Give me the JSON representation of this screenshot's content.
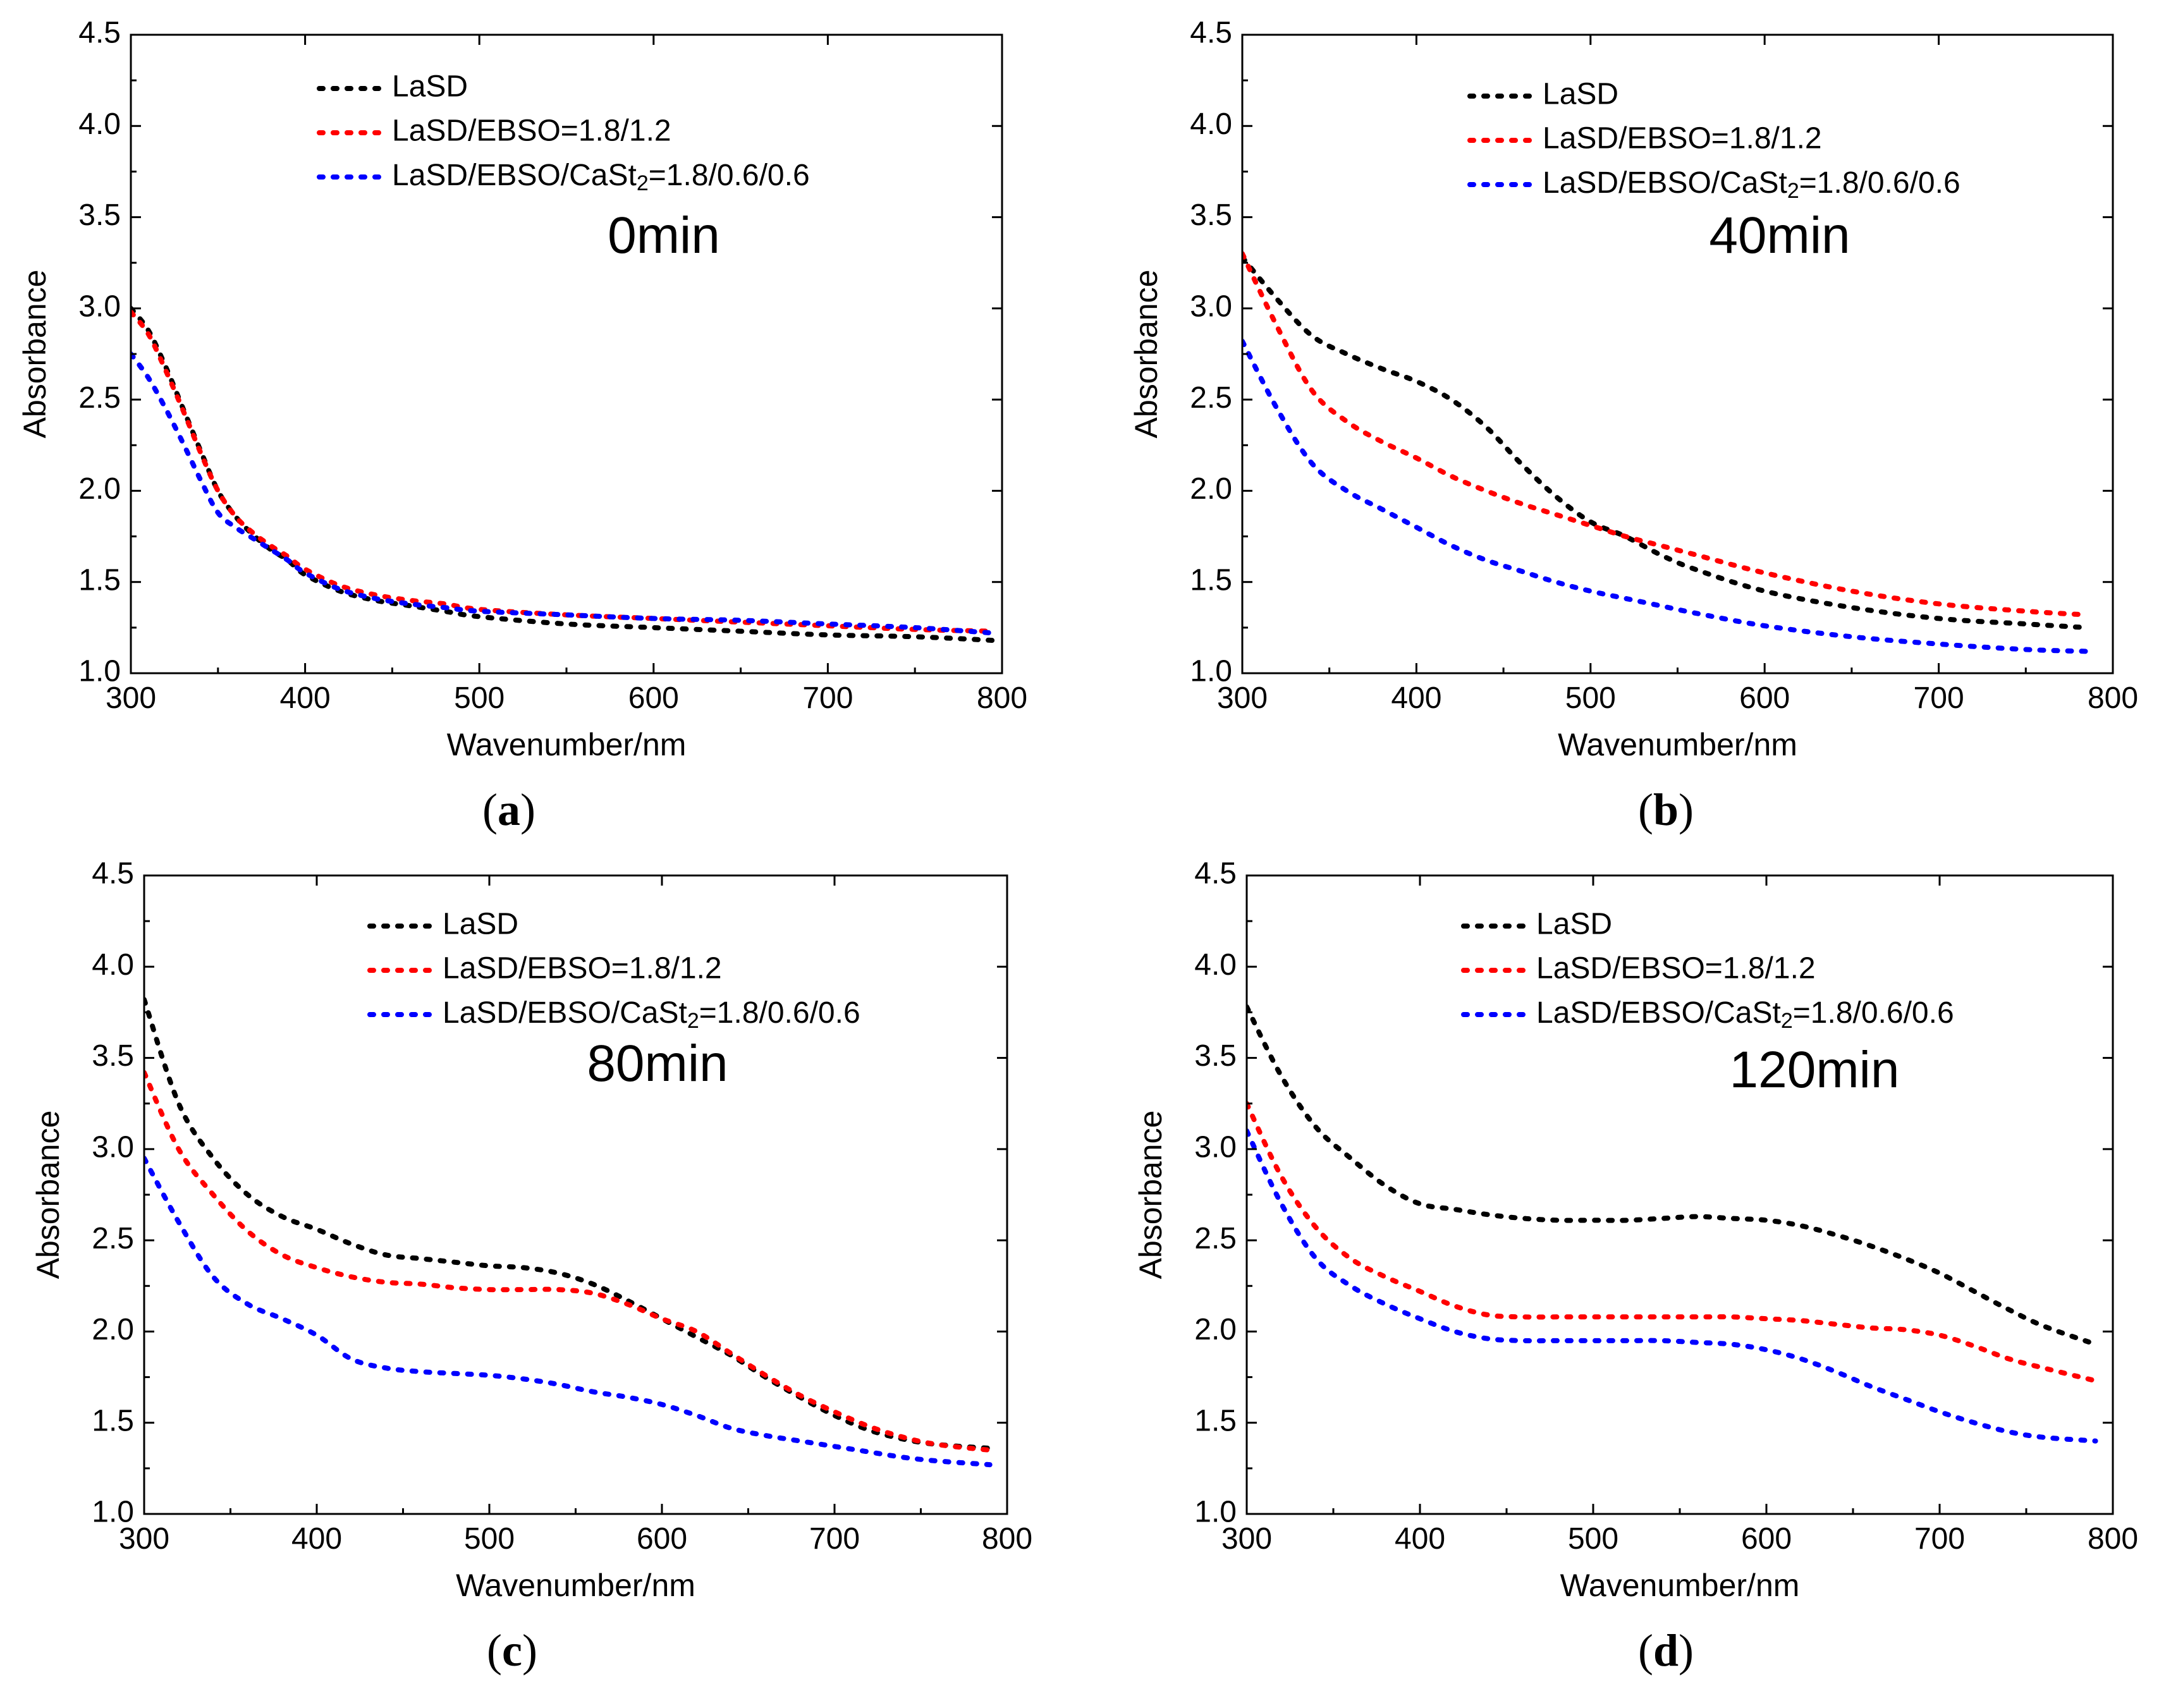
{
  "chart_data": [
    {
      "type": "line",
      "panel": "(a)",
      "annotation": "0min",
      "xlabel": "Wavenumber/nm",
      "ylabel": "Absorbance",
      "xlim": [
        300,
        800
      ],
      "ylim": [
        1.0,
        4.5
      ],
      "xticks": [
        "300",
        "400",
        "500",
        "600",
        "700",
        "800"
      ],
      "yticks": [
        "1.0",
        "1.5",
        "2.0",
        "2.5",
        "3.0",
        "3.5",
        "4.0",
        "4.5"
      ],
      "legend": {
        "placement": "top-center"
      },
      "series": [
        {
          "name": "LaSD",
          "color": "#000000",
          "x": [
            300,
            310,
            320,
            330,
            340,
            350,
            360,
            370,
            380,
            390,
            400,
            420,
            440,
            460,
            480,
            500,
            550,
            600,
            650,
            700,
            750,
            795
          ],
          "y": [
            3.0,
            2.88,
            2.68,
            2.45,
            2.22,
            2.0,
            1.86,
            1.76,
            1.68,
            1.62,
            1.54,
            1.45,
            1.4,
            1.37,
            1.34,
            1.31,
            1.27,
            1.25,
            1.23,
            1.21,
            1.2,
            1.18
          ]
        },
        {
          "name": "LaSD/EBSO=1.8/1.2",
          "color": "#ff0000",
          "x": [
            300,
            310,
            320,
            330,
            340,
            350,
            360,
            370,
            380,
            390,
            400,
            420,
            440,
            460,
            480,
            500,
            550,
            600,
            650,
            700,
            750,
            795
          ],
          "y": [
            2.98,
            2.86,
            2.66,
            2.44,
            2.21,
            2.0,
            1.86,
            1.77,
            1.7,
            1.64,
            1.57,
            1.48,
            1.43,
            1.4,
            1.38,
            1.35,
            1.32,
            1.3,
            1.28,
            1.26,
            1.24,
            1.23
          ]
        },
        {
          "name": "LaSD/EBSO/CaSt2=1.8/0.6/0.6",
          "color": "#0000ff",
          "x": [
            300,
            310,
            320,
            330,
            340,
            350,
            360,
            370,
            380,
            390,
            400,
            420,
            440,
            460,
            480,
            500,
            550,
            600,
            650,
            700,
            750,
            795
          ],
          "y": [
            2.75,
            2.62,
            2.45,
            2.26,
            2.06,
            1.88,
            1.8,
            1.74,
            1.68,
            1.62,
            1.55,
            1.46,
            1.41,
            1.38,
            1.36,
            1.34,
            1.32,
            1.3,
            1.29,
            1.27,
            1.25,
            1.22
          ]
        }
      ]
    },
    {
      "type": "line",
      "panel": "(b)",
      "annotation": "40min",
      "xlabel": "Wavenumber/nm",
      "ylabel": "Absorbance",
      "xlim": [
        300,
        800
      ],
      "ylim": [
        1.0,
        4.5
      ],
      "xticks": [
        "300",
        "400",
        "500",
        "600",
        "700",
        "800"
      ],
      "yticks": [
        "1.0",
        "1.5",
        "2.0",
        "2.5",
        "3.0",
        "3.5",
        "4.0",
        "4.5"
      ],
      "legend": {
        "placement": "top-right"
      },
      "series": [
        {
          "name": "LaSD",
          "color": "#000000",
          "x": [
            300,
            320,
            340,
            360,
            380,
            400,
            420,
            440,
            460,
            480,
            500,
            520,
            540,
            560,
            600,
            650,
            700,
            750,
            785
          ],
          "y": [
            3.28,
            3.05,
            2.85,
            2.75,
            2.67,
            2.6,
            2.5,
            2.35,
            2.15,
            1.97,
            1.83,
            1.75,
            1.65,
            1.57,
            1.45,
            1.36,
            1.3,
            1.27,
            1.25
          ]
        },
        {
          "name": "LaSD/EBSO=1.8/1.2",
          "color": "#ff0000",
          "x": [
            300,
            320,
            340,
            360,
            380,
            400,
            420,
            440,
            460,
            480,
            500,
            520,
            540,
            560,
            600,
            650,
            700,
            750,
            785
          ],
          "y": [
            3.3,
            2.9,
            2.55,
            2.38,
            2.27,
            2.18,
            2.08,
            2.0,
            1.93,
            1.87,
            1.81,
            1.75,
            1.7,
            1.65,
            1.55,
            1.45,
            1.38,
            1.34,
            1.32
          ]
        },
        {
          "name": "LaSD/EBSO/CaSt2=1.8/0.6/0.6",
          "color": "#0000ff",
          "x": [
            300,
            320,
            340,
            360,
            380,
            400,
            420,
            440,
            460,
            480,
            500,
            520,
            540,
            560,
            600,
            650,
            700,
            750,
            785
          ],
          "y": [
            2.82,
            2.45,
            2.15,
            2.0,
            1.9,
            1.8,
            1.7,
            1.62,
            1.56,
            1.5,
            1.45,
            1.41,
            1.37,
            1.33,
            1.26,
            1.2,
            1.16,
            1.13,
            1.12
          ]
        }
      ]
    },
    {
      "type": "line",
      "panel": "(c)",
      "annotation": "80min",
      "xlabel": "Wavenumber/nm",
      "ylabel": "Absorbance",
      "xlim": [
        300,
        800
      ],
      "ylim": [
        1.0,
        4.5
      ],
      "xticks": [
        "300",
        "400",
        "500",
        "600",
        "700",
        "800"
      ],
      "yticks": [
        "1.0",
        "1.5",
        "2.0",
        "2.5",
        "3.0",
        "3.5",
        "4.0",
        "4.5"
      ],
      "legend": {
        "placement": "top-right"
      },
      "series": [
        {
          "name": "LaSD",
          "color": "#000000",
          "x": [
            300,
            320,
            340,
            360,
            380,
            400,
            420,
            440,
            460,
            480,
            500,
            520,
            540,
            560,
            580,
            600,
            620,
            640,
            660,
            680,
            700,
            720,
            740,
            760,
            790
          ],
          "y": [
            3.82,
            3.25,
            2.95,
            2.75,
            2.63,
            2.56,
            2.48,
            2.42,
            2.4,
            2.38,
            2.36,
            2.35,
            2.32,
            2.26,
            2.17,
            2.07,
            1.97,
            1.87,
            1.75,
            1.64,
            1.54,
            1.46,
            1.41,
            1.38,
            1.36
          ]
        },
        {
          "name": "LaSD/EBSO=1.8/1.2",
          "color": "#ff0000",
          "x": [
            300,
            320,
            340,
            360,
            380,
            400,
            420,
            440,
            460,
            480,
            500,
            520,
            540,
            560,
            580,
            600,
            620,
            640,
            660,
            680,
            700,
            720,
            740,
            760,
            790
          ],
          "y": [
            3.42,
            3.0,
            2.75,
            2.55,
            2.42,
            2.35,
            2.3,
            2.27,
            2.26,
            2.24,
            2.23,
            2.23,
            2.23,
            2.21,
            2.15,
            2.07,
            2.0,
            1.88,
            1.76,
            1.65,
            1.56,
            1.48,
            1.42,
            1.38,
            1.35
          ]
        },
        {
          "name": "LaSD/EBSO/CaSt2=1.8/0.6/0.6",
          "color": "#0000ff",
          "x": [
            300,
            320,
            340,
            360,
            380,
            400,
            420,
            440,
            460,
            480,
            500,
            520,
            540,
            560,
            580,
            600,
            620,
            640,
            660,
            680,
            700,
            720,
            740,
            760,
            790
          ],
          "y": [
            2.95,
            2.6,
            2.3,
            2.15,
            2.07,
            1.98,
            1.85,
            1.8,
            1.78,
            1.77,
            1.76,
            1.74,
            1.71,
            1.67,
            1.64,
            1.6,
            1.54,
            1.47,
            1.43,
            1.4,
            1.37,
            1.34,
            1.31,
            1.29,
            1.27
          ]
        }
      ]
    },
    {
      "type": "line",
      "panel": "(d)",
      "annotation": "120min",
      "xlabel": "Wavenumber/nm",
      "ylabel": "Absorbance",
      "xlim": [
        300,
        800
      ],
      "ylim": [
        1.0,
        4.5
      ],
      "xticks": [
        "300",
        "400",
        "500",
        "600",
        "700",
        "800"
      ],
      "yticks": [
        "1.0",
        "1.5",
        "2.0",
        "2.5",
        "3.0",
        "3.5",
        "4.0",
        "4.5"
      ],
      "legend": {
        "placement": "top-right"
      },
      "series": [
        {
          "name": "LaSD",
          "color": "#000000",
          "x": [
            300,
            320,
            340,
            360,
            380,
            400,
            420,
            440,
            460,
            480,
            500,
            520,
            540,
            560,
            580,
            600,
            620,
            640,
            660,
            680,
            700,
            720,
            740,
            760,
            790
          ],
          "y": [
            3.78,
            3.4,
            3.12,
            2.95,
            2.8,
            2.7,
            2.67,
            2.64,
            2.62,
            2.61,
            2.61,
            2.61,
            2.62,
            2.63,
            2.62,
            2.61,
            2.58,
            2.53,
            2.47,
            2.4,
            2.32,
            2.22,
            2.12,
            2.03,
            1.93
          ]
        },
        {
          "name": "LaSD/EBSO=1.8/1.2",
          "color": "#ff0000",
          "x": [
            300,
            320,
            340,
            360,
            380,
            400,
            420,
            440,
            460,
            480,
            500,
            520,
            540,
            560,
            580,
            600,
            620,
            640,
            660,
            680,
            700,
            720,
            740,
            760,
            790
          ],
          "y": [
            3.25,
            2.85,
            2.57,
            2.4,
            2.3,
            2.22,
            2.14,
            2.09,
            2.08,
            2.08,
            2.08,
            2.08,
            2.08,
            2.08,
            2.08,
            2.07,
            2.06,
            2.04,
            2.02,
            2.01,
            1.98,
            1.92,
            1.85,
            1.8,
            1.73
          ]
        },
        {
          "name": "LaSD/EBSO/CaSt2=1.8/0.6/0.6",
          "color": "#0000ff",
          "x": [
            300,
            320,
            340,
            360,
            380,
            400,
            420,
            440,
            460,
            480,
            500,
            520,
            540,
            560,
            580,
            600,
            620,
            640,
            660,
            680,
            700,
            720,
            740,
            760,
            790
          ],
          "y": [
            3.1,
            2.7,
            2.4,
            2.25,
            2.15,
            2.07,
            2.0,
            1.96,
            1.95,
            1.95,
            1.95,
            1.95,
            1.95,
            1.94,
            1.93,
            1.9,
            1.85,
            1.78,
            1.7,
            1.63,
            1.56,
            1.5,
            1.45,
            1.42,
            1.4
          ]
        }
      ]
    }
  ]
}
